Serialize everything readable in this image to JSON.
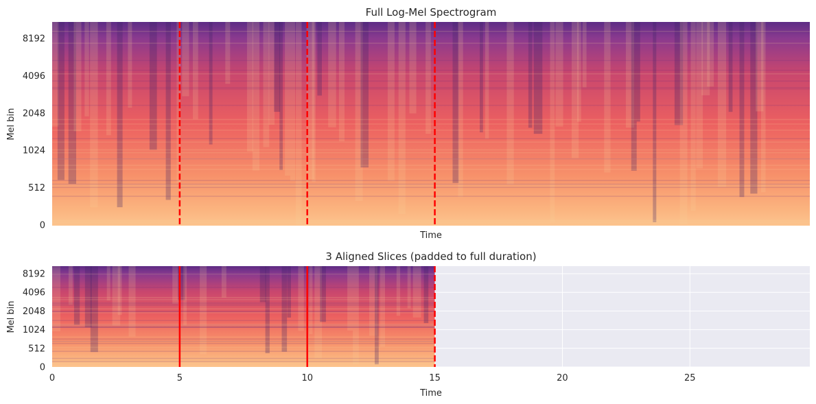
{
  "chart_data": [
    {
      "type": "heatmap",
      "title": "Full Log-Mel Spectrogram",
      "xlabel": "Time",
      "ylabel": "Mel bin",
      "xlim": [
        0,
        29.7
      ],
      "yticks": [
        {
          "value": 0,
          "label": "0"
        },
        {
          "value": 512,
          "label": "512"
        },
        {
          "value": 1024,
          "label": "1024"
        },
        {
          "value": 2048,
          "label": "2048"
        },
        {
          "value": 4096,
          "label": "4096"
        },
        {
          "value": 8192,
          "label": "8192"
        }
      ],
      "show_xticks": false,
      "colormap": "magma",
      "boundaries": [
        5,
        10,
        15
      ],
      "boundary_style": "dashed",
      "boundary_color": "#ff0000"
    },
    {
      "type": "heatmap",
      "title": "3 Aligned Slices (padded to full duration)",
      "xlabel": "Time",
      "ylabel": "Mel bin",
      "xlim": [
        0,
        29.7
      ],
      "xticks": [
        0,
        5,
        10,
        15,
        20,
        25
      ],
      "yticks": [
        {
          "value": 0,
          "label": "0"
        },
        {
          "value": 512,
          "label": "512"
        },
        {
          "value": 1024,
          "label": "1024"
        },
        {
          "value": 2048,
          "label": "2048"
        },
        {
          "value": 4096,
          "label": "4096"
        },
        {
          "value": 8192,
          "label": "8192"
        }
      ],
      "slices": [
        [
          0,
          5
        ],
        [
          5,
          10
        ],
        [
          10,
          15
        ]
      ],
      "slice_boundaries": [
        5,
        10
      ],
      "slice_boundary_style": "solid",
      "end_marker": 15,
      "end_marker_style": "dashed",
      "boundary_color": "#ff0000",
      "padding_color": "#eaeaf2",
      "grid": true,
      "colormap": "magma"
    }
  ]
}
